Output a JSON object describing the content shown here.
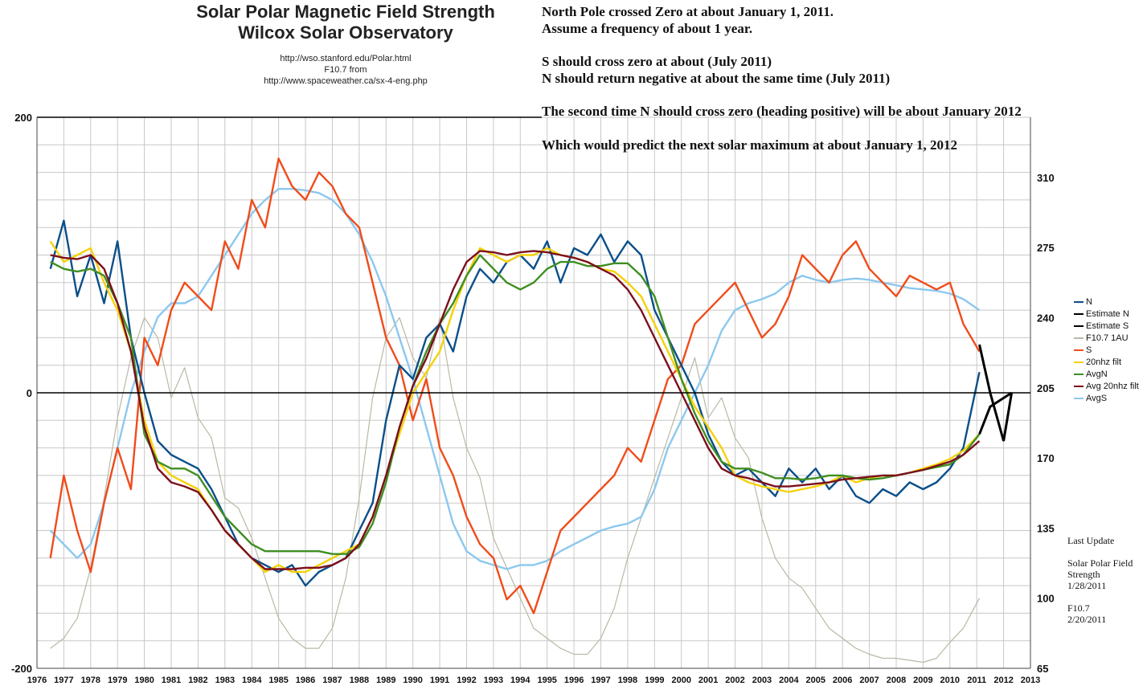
{
  "header": {
    "title_line1": "Solar Polar Magnetic Field Strength",
    "title_line2": "Wilcox Solar Observatory",
    "source_line1": "http://wso.stanford.edu/Polar.html",
    "source_line2": "F10.7 from",
    "source_line3": "http://www.spaceweather.ca/sx-4-eng.php"
  },
  "notes": {
    "line1": "North Pole crossed Zero at about January 1, 2011.",
    "line2": "Assume a frequency of about 1 year.",
    "line3": "S should cross zero at about (July  2011)",
    "line4": "N should return negative at about the same time (July 2011)",
    "line5": "The second time N should cross zero (heading positive) will be about January 2012",
    "line6": "Which would predict the next solar maximum at about January 1, 2012"
  },
  "last_update": {
    "heading": "Last Update",
    "label1": "Solar Polar Field",
    "label2": "Strength",
    "date1": "1/28/2011",
    "label3": "F10.7",
    "date2": "2/20/2011"
  },
  "chart_data": {
    "type": "line",
    "x_axis": {
      "min": 1976,
      "max": 2013,
      "ticks": [
        "1976",
        "1977",
        "1978",
        "1979",
        "1980",
        "1981",
        "1982",
        "1983",
        "1984",
        "1985",
        "1986",
        "1987",
        "1988",
        "1989",
        "1990",
        "1991",
        "1992",
        "1993",
        "1994",
        "1995",
        "1996",
        "1997",
        "1998",
        "1999",
        "2000",
        "2001",
        "2002",
        "2003",
        "2004",
        "2005",
        "2006",
        "2007",
        "2008",
        "2009",
        "2010",
        "2011",
        "2012",
        "2013"
      ]
    },
    "y_left": {
      "min": -200,
      "max": 200,
      "ticks": [
        "200",
        "0",
        "-200"
      ]
    },
    "y_right": {
      "min": 65,
      "max": 340,
      "ticks": [
        "310",
        "275",
        "240",
        "205",
        "170",
        "135",
        "100",
        "65"
      ]
    },
    "grid": true,
    "legend_position": "right",
    "series": [
      {
        "name": "N",
        "color": "#0b4f8a",
        "x": [
          1976.5,
          1977,
          1977.5,
          1978,
          1978.5,
          1979,
          1979.5,
          1980,
          1980.5,
          1981,
          1981.5,
          1982,
          1982.5,
          1983,
          1983.5,
          1984,
          1984.5,
          1985,
          1985.5,
          1986,
          1986.5,
          1987,
          1987.5,
          1988,
          1988.5,
          1989,
          1989.5,
          1990,
          1990.5,
          1991,
          1991.5,
          1992,
          1992.5,
          1993,
          1993.5,
          1994,
          1994.5,
          1995,
          1995.5,
          1996,
          1996.5,
          1997,
          1997.5,
          1998,
          1998.5,
          1999,
          1999.5,
          2000,
          2000.5,
          2001,
          2001.5,
          2002,
          2002.5,
          2003,
          2003.5,
          2004,
          2004.5,
          2005,
          2005.5,
          2006,
          2006.5,
          2007,
          2007.5,
          2008,
          2008.5,
          2009,
          2009.5,
          2010,
          2010.5,
          2011.1
        ],
        "y": [
          90,
          125,
          70,
          100,
          65,
          110,
          40,
          0,
          -35,
          -45,
          -50,
          -55,
          -70,
          -90,
          -110,
          -120,
          -125,
          -130,
          -125,
          -140,
          -130,
          -125,
          -120,
          -100,
          -80,
          -20,
          20,
          10,
          40,
          50,
          30,
          70,
          90,
          80,
          95,
          100,
          90,
          110,
          80,
          105,
          100,
          115,
          95,
          110,
          100,
          60,
          40,
          20,
          0,
          -30,
          -50,
          -60,
          -55,
          -65,
          -75,
          -55,
          -65,
          -55,
          -70,
          -60,
          -75,
          -80,
          -70,
          -75,
          -65,
          -70,
          -65,
          -55,
          -40,
          15
        ]
      },
      {
        "name": "Estimate N",
        "color": "#000000",
        "x": [
          2011.1,
          2011.5,
          2012,
          2012.3
        ],
        "y": [
          35,
          0,
          -35,
          0
        ]
      },
      {
        "name": "Estimate S",
        "color": "#000000",
        "x": [
          2011.1,
          2011.5,
          2012.3
        ],
        "y": [
          -30,
          -10,
          0
        ]
      },
      {
        "name": "F10.7 1AU",
        "color": "#b8b8a6",
        "x": [
          1976.5,
          1977,
          1977.5,
          1978,
          1978.5,
          1979,
          1979.5,
          1980,
          1980.5,
          1981,
          1981.5,
          1982,
          1982.5,
          1983,
          1983.5,
          1984,
          1984.5,
          1985,
          1985.5,
          1986,
          1986.5,
          1987,
          1987.5,
          1988,
          1988.5,
          1989,
          1989.5,
          1990,
          1990.5,
          1991,
          1991.5,
          1992,
          1992.5,
          1993,
          1993.5,
          1994,
          1994.5,
          1995,
          1995.5,
          1996,
          1996.5,
          1997,
          1997.5,
          1998,
          1998.5,
          1999,
          1999.5,
          2000,
          2000.5,
          2001,
          2001.5,
          2002,
          2002.5,
          2003,
          2003.5,
          2004,
          2004.5,
          2005,
          2005.5,
          2006,
          2006.5,
          2007,
          2007.5,
          2008,
          2008.5,
          2009,
          2009.5,
          2010,
          2010.5,
          2011.1
        ],
        "y": [
          75,
          80,
          90,
          115,
          150,
          190,
          220,
          240,
          230,
          200,
          215,
          190,
          180,
          150,
          145,
          130,
          110,
          90,
          80,
          75,
          75,
          85,
          110,
          150,
          200,
          230,
          240,
          220,
          210,
          240,
          200,
          175,
          160,
          130,
          115,
          100,
          85,
          80,
          75,
          72,
          72,
          80,
          95,
          120,
          140,
          160,
          180,
          200,
          220,
          190,
          200,
          180,
          170,
          140,
          120,
          110,
          105,
          95,
          85,
          80,
          75,
          72,
          70,
          70,
          69,
          68,
          70,
          78,
          85,
          100
        ]
      },
      {
        "name": "S",
        "color": "#f04c1b",
        "x": [
          1976.5,
          1977,
          1977.5,
          1978,
          1978.5,
          1979,
          1979.5,
          1980,
          1980.5,
          1981,
          1981.5,
          1982,
          1982.5,
          1983,
          1983.5,
          1984,
          1984.5,
          1985,
          1985.5,
          1986,
          1986.5,
          1987,
          1987.5,
          1988,
          1988.5,
          1989,
          1989.5,
          1990,
          1990.5,
          1991,
          1991.5,
          1992,
          1992.5,
          1993,
          1993.5,
          1994,
          1994.5,
          1995,
          1995.5,
          1996,
          1996.5,
          1997,
          1997.5,
          1998,
          1998.5,
          1999,
          1999.5,
          2000,
          2000.5,
          2001,
          2001.5,
          2002,
          2002.5,
          2003,
          2003.5,
          2004,
          2004.5,
          2005,
          2005.5,
          2006,
          2006.5,
          2007,
          2007.5,
          2008,
          2008.5,
          2009,
          2009.5,
          2010,
          2010.5,
          2011.1
        ],
        "y": [
          -120,
          -60,
          -100,
          -130,
          -80,
          -40,
          -70,
          40,
          20,
          60,
          80,
          70,
          60,
          110,
          90,
          140,
          120,
          170,
          150,
          140,
          160,
          150,
          130,
          120,
          80,
          40,
          20,
          -20,
          10,
          -40,
          -60,
          -90,
          -110,
          -120,
          -150,
          -140,
          -160,
          -130,
          -100,
          -90,
          -80,
          -70,
          -60,
          -40,
          -50,
          -20,
          10,
          20,
          50,
          60,
          70,
          80,
          60,
          40,
          50,
          70,
          100,
          90,
          80,
          100,
          110,
          90,
          80,
          70,
          85,
          80,
          75,
          80,
          50,
          30
        ]
      },
      {
        "name": "20nhz filt",
        "color": "#f5d10a",
        "x": [
          1976.5,
          1977,
          1977.5,
          1978,
          1978.5,
          1979,
          1979.5,
          1980,
          1980.5,
          1981,
          1981.5,
          1982,
          1982.5,
          1983,
          1983.5,
          1984,
          1984.5,
          1985,
          1985.5,
          1986,
          1986.5,
          1987,
          1987.5,
          1988,
          1988.5,
          1989,
          1989.5,
          1990,
          1990.5,
          1991,
          1991.5,
          1992,
          1992.5,
          1993,
          1993.5,
          1994,
          1994.5,
          1995,
          1995.5,
          1996,
          1996.5,
          1997,
          1997.5,
          1998,
          1998.5,
          1999,
          1999.5,
          2000,
          2000.5,
          2001,
          2001.5,
          2002,
          2002.5,
          2003,
          2003.5,
          2004,
          2004.5,
          2005,
          2005.5,
          2006,
          2006.5,
          2007,
          2007.5,
          2008,
          2008.5,
          2009,
          2009.5,
          2010,
          2010.5,
          2011.1
        ],
        "y": [
          110,
          95,
          100,
          105,
          80,
          60,
          30,
          -20,
          -50,
          -60,
          -65,
          -70,
          -85,
          -100,
          -110,
          -120,
          -130,
          -125,
          -130,
          -130,
          -125,
          -120,
          -115,
          -110,
          -90,
          -60,
          -30,
          0,
          15,
          30,
          60,
          85,
          105,
          100,
          95,
          100,
          100,
          105,
          100,
          98,
          95,
          90,
          88,
          80,
          70,
          50,
          30,
          10,
          -10,
          -25,
          -40,
          -60,
          -65,
          -68,
          -70,
          -72,
          -70,
          -68,
          -65,
          -60,
          -65,
          -62,
          -60,
          -60,
          -58,
          -55,
          -52,
          -48,
          -42,
          -30
        ]
      },
      {
        "name": "AvgN",
        "color": "#3f8e22",
        "x": [
          1976.5,
          1977,
          1977.5,
          1978,
          1978.5,
          1979,
          1979.5,
          1980,
          1980.5,
          1981,
          1981.5,
          1982,
          1982.5,
          1983,
          1983.5,
          1984,
          1984.5,
          1985,
          1985.5,
          1986,
          1986.5,
          1987,
          1987.5,
          1988,
          1988.5,
          1989,
          1989.5,
          1990,
          1990.5,
          1991,
          1991.5,
          1992,
          1992.5,
          1993,
          1993.5,
          1994,
          1994.5,
          1995,
          1995.5,
          1996,
          1996.5,
          1997,
          1997.5,
          1998,
          1998.5,
          1999,
          1999.5,
          2000,
          2000.5,
          2001,
          2001.5,
          2002,
          2002.5,
          2003,
          2003.5,
          2004,
          2004.5,
          2005,
          2005.5,
          2006,
          2006.5,
          2007,
          2007.5,
          2008,
          2008.5,
          2009,
          2009.5,
          2010,
          2010.5,
          2011.1
        ],
        "y": [
          95,
          90,
          88,
          90,
          85,
          65,
          40,
          -30,
          -50,
          -55,
          -55,
          -60,
          -75,
          -90,
          -100,
          -110,
          -115,
          -115,
          -115,
          -115,
          -115,
          -117,
          -117,
          -112,
          -95,
          -65,
          -25,
          5,
          30,
          50,
          65,
          85,
          100,
          90,
          80,
          75,
          80,
          90,
          95,
          95,
          92,
          92,
          94,
          94,
          85,
          70,
          40,
          10,
          -15,
          -35,
          -50,
          -55,
          -55,
          -58,
          -62,
          -62,
          -63,
          -62,
          -60,
          -60,
          -62,
          -63,
          -62,
          -60,
          -58,
          -56,
          -54,
          -52,
          -45,
          -30
        ]
      },
      {
        "name": "Avg 20nhz filt",
        "color": "#7b0f1c",
        "x": [
          1976.5,
          1977,
          1977.5,
          1978,
          1978.5,
          1979,
          1979.5,
          1980,
          1980.5,
          1981,
          1981.5,
          1982,
          1982.5,
          1983,
          1983.5,
          1984,
          1984.5,
          1985,
          1985.5,
          1986,
          1986.5,
          1987,
          1987.5,
          1988,
          1988.5,
          1989,
          1989.5,
          1990,
          1990.5,
          1991,
          1991.5,
          1992,
          1992.5,
          1993,
          1993.5,
          1994,
          1994.5,
          1995,
          1995.5,
          1996,
          1996.5,
          1997,
          1997.5,
          1998,
          1998.5,
          1999,
          1999.5,
          2000,
          2000.5,
          2001,
          2001.5,
          2002,
          2002.5,
          2003,
          2003.5,
          2004,
          2004.5,
          2005,
          2005.5,
          2006,
          2006.5,
          2007,
          2007.5,
          2008,
          2008.5,
          2009,
          2009.5,
          2010,
          2010.5,
          2011.1
        ],
        "y": [
          100,
          98,
          97,
          100,
          90,
          65,
          30,
          -25,
          -55,
          -65,
          -68,
          -72,
          -85,
          -100,
          -110,
          -120,
          -128,
          -128,
          -128,
          -127,
          -127,
          -125,
          -120,
          -110,
          -90,
          -60,
          -25,
          5,
          25,
          50,
          75,
          95,
          103,
          102,
          100,
          102,
          103,
          102,
          100,
          98,
          95,
          90,
          85,
          75,
          60,
          40,
          20,
          0,
          -20,
          -40,
          -55,
          -60,
          -62,
          -65,
          -68,
          -68,
          -67,
          -66,
          -65,
          -63,
          -62,
          -61,
          -60,
          -60,
          -58,
          -56,
          -53,
          -50,
          -45,
          -35
        ]
      },
      {
        "name": "AvgS",
        "color": "#8cc8ef",
        "x": [
          1976.5,
          1977,
          1977.5,
          1978,
          1978.5,
          1979,
          1979.5,
          1980,
          1980.5,
          1981,
          1981.5,
          1982,
          1982.5,
          1983,
          1983.5,
          1984,
          1984.5,
          1985,
          1985.5,
          1986,
          1986.5,
          1987,
          1987.5,
          1988,
          1988.5,
          1989,
          1989.5,
          1990,
          1990.5,
          1991,
          1991.5,
          1992,
          1992.5,
          1993,
          1993.5,
          1994,
          1994.5,
          1995,
          1995.5,
          1996,
          1996.5,
          1997,
          1997.5,
          1998,
          1998.5,
          1999,
          1999.5,
          2000,
          2000.5,
          2001,
          2001.5,
          2002,
          2002.5,
          2003,
          2003.5,
          2004,
          2004.5,
          2005,
          2005.5,
          2006,
          2006.5,
          2007,
          2007.5,
          2008,
          2008.5,
          2009,
          2009.5,
          2010,
          2010.5,
          2011.1
        ],
        "y": [
          -100,
          -110,
          -120,
          -110,
          -80,
          -40,
          0,
          30,
          55,
          65,
          65,
          70,
          85,
          100,
          115,
          130,
          140,
          148,
          148,
          147,
          145,
          140,
          130,
          115,
          95,
          70,
          40,
          10,
          -25,
          -60,
          -95,
          -115,
          -122,
          -125,
          -128,
          -125,
          -125,
          -122,
          -115,
          -110,
          -105,
          -100,
          -97,
          -95,
          -90,
          -70,
          -40,
          -20,
          0,
          20,
          45,
          60,
          65,
          68,
          72,
          80,
          85,
          82,
          80,
          82,
          83,
          82,
          80,
          78,
          76,
          75,
          74,
          72,
          68,
          60
        ]
      }
    ]
  }
}
